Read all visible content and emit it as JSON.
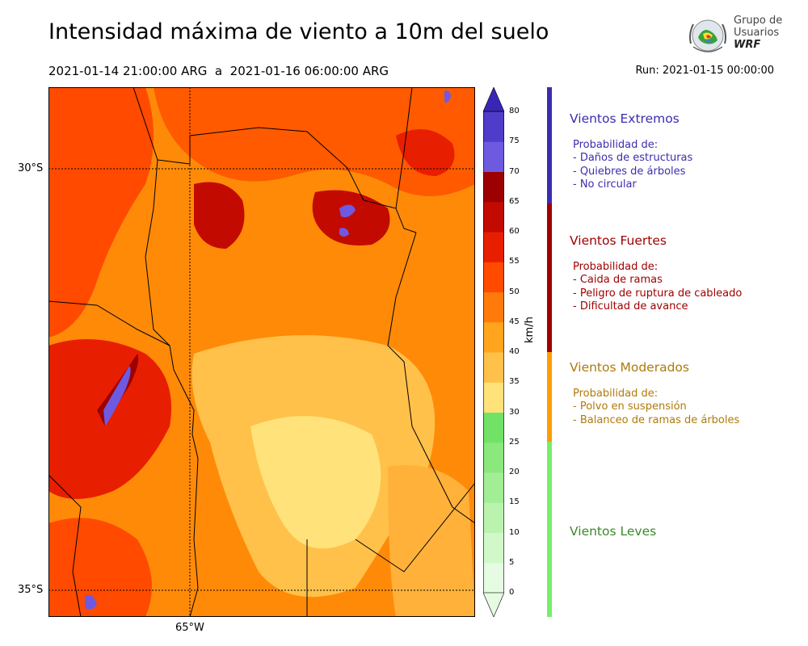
{
  "header": {
    "title": "Intensidad máxima de viento a 10m del suelo",
    "period": "2021-01-14 21:00:00 ARG  a  2021-01-16 06:00:00 ARG",
    "run": "Run: 2021-01-15 00:00:00"
  },
  "logo": {
    "line1": "Grupo de",
    "line2": "Usuarios",
    "line3": "WRF"
  },
  "map": {
    "lat_labels": [
      "30°S",
      "35°S"
    ],
    "lon_labels": [
      "65°W"
    ]
  },
  "colorbar": {
    "unit": "km/h",
    "ticks": [
      "0",
      "5",
      "10",
      "15",
      "20",
      "25",
      "30",
      "35",
      "40",
      "45",
      "50",
      "55",
      "60",
      "65",
      "70",
      "75",
      "80"
    ],
    "colors": [
      "#e6fce2",
      "#d0f8c8",
      "#baf3ae",
      "#a2ee94",
      "#8ae87c",
      "#72e266",
      "#ffe27a",
      "#ffc14a",
      "#ffa41c",
      "#ff7a0a",
      "#ff4a00",
      "#e81e00",
      "#c30a00",
      "#9c0000",
      "#6e5ae0",
      "#503ccb",
      "#3a26b5"
    ]
  },
  "categories": [
    {
      "title": "Vientos Extremos",
      "color": "#3b2db0",
      "lines": [
        "Probabilidad de:",
        "- Daños de estructuras",
        "- Quiebres de árboles",
        "- No circular"
      ]
    },
    {
      "title": "Vientos Fuertes",
      "color": "#a00000",
      "lines": [
        "Probabilidad de:",
        "- Caida de ramas",
        "- Peligro de ruptura de cableado",
        "- Dificultad de avance"
      ]
    },
    {
      "title": "Vientos Moderados",
      "color": "#b07a0a",
      "lines": [
        "Probabilidad de:",
        "- Polvo en suspensión",
        "- Balanceo de ramas de árboles"
      ]
    },
    {
      "title": "Vientos Leves",
      "color": "#3a8a2a",
      "lines": []
    }
  ],
  "category_bar_colors": [
    "#3b2db0",
    "#a00000",
    "#ff9c00",
    "#78ee6a"
  ]
}
